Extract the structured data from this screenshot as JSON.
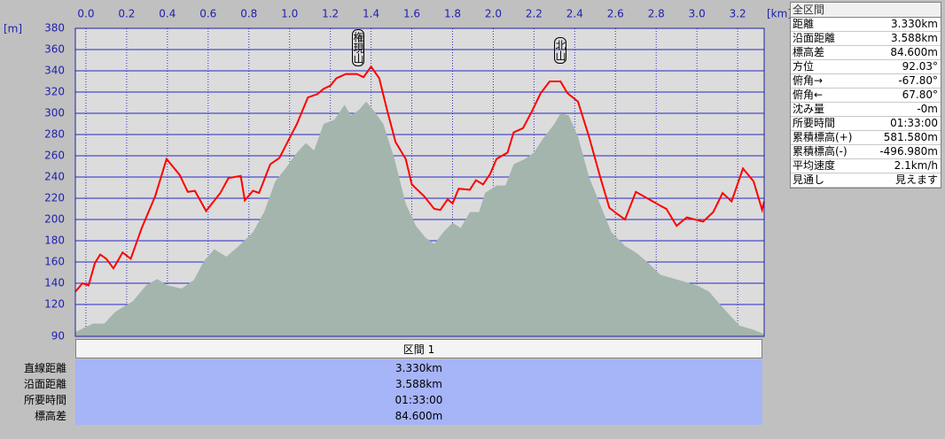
{
  "chart_data": {
    "type": "line",
    "xlabel": "[km]",
    "ylabel": "[m]",
    "xlim": [
      -0.052,
      3.33
    ],
    "ylim": [
      90,
      380
    ],
    "xticks": [
      {
        "value": 0,
        "label": "0.0"
      },
      0.2,
      0.4,
      0.6,
      0.8,
      {
        "value": 1,
        "label": "1.0"
      },
      1.2,
      1.4,
      1.6,
      1.8,
      {
        "value": 2,
        "label": "2.0"
      },
      2.2,
      2.4,
      2.6,
      2.8,
      {
        "value": 3,
        "label": "3.0"
      },
      3.2
    ],
    "yticks": [
      90,
      120,
      140,
      160,
      180,
      200,
      220,
      240,
      260,
      280,
      300,
      320,
      340,
      360,
      380
    ],
    "grid": true,
    "series": [
      {
        "type": "area",
        "color": "#a3b5ad",
        "x": [
          -0.052,
          -0.01,
          0.035,
          0.09,
          0.144,
          0.23,
          0.296,
          0.35,
          0.4,
          0.47,
          0.53,
          0.58,
          0.63,
          0.69,
          0.75,
          0.82,
          0.875,
          0.93,
          0.98,
          1.036,
          1.08,
          1.12,
          1.167,
          1.22,
          1.27,
          1.3,
          1.34,
          1.376,
          1.415,
          1.46,
          1.515,
          1.57,
          1.62,
          1.667,
          1.71,
          1.755,
          1.8,
          1.84,
          1.885,
          1.93,
          1.96,
          2.016,
          2.06,
          2.1,
          2.155,
          2.2,
          2.24,
          2.3,
          2.33,
          2.37,
          2.416,
          2.47,
          2.54,
          2.58,
          2.647,
          2.7,
          2.756,
          2.82,
          2.91,
          3.0,
          3.06,
          3.1,
          3.17,
          3.21,
          3.28,
          3.33
        ],
        "values": [
          94,
          98,
          102,
          102,
          113,
          123,
          138,
          144,
          138,
          135,
          143,
          161,
          172,
          165,
          175,
          188,
          207,
          236,
          248,
          263,
          272,
          265,
          290,
          294,
          308,
          298,
          303,
          311,
          302,
          290,
          257,
          215,
          194,
          183,
          177,
          188,
          197,
          192,
          207,
          207,
          225,
          232,
          232,
          252,
          257,
          263,
          275,
          290,
          300,
          298,
          278,
          240,
          207,
          188,
          175,
          169,
          160,
          148,
          143,
          138,
          132,
          123,
          108,
          100,
          96,
          92
        ]
      },
      {
        "type": "line",
        "color": "#ff0000",
        "x": [
          -0.052,
          -0.017,
          0.013,
          0.044,
          0.07,
          0.1,
          0.135,
          0.18,
          0.22,
          0.274,
          0.34,
          0.396,
          0.46,
          0.5,
          0.535,
          0.59,
          0.66,
          0.7,
          0.76,
          0.78,
          0.82,
          0.85,
          0.905,
          0.95,
          0.99,
          1.036,
          1.09,
          1.136,
          1.167,
          1.2,
          1.23,
          1.276,
          1.33,
          1.363,
          1.4,
          1.44,
          1.48,
          1.52,
          1.57,
          1.6,
          1.66,
          1.71,
          1.74,
          1.776,
          1.8,
          1.83,
          1.885,
          1.915,
          1.95,
          1.985,
          2.016,
          2.07,
          2.1,
          2.146,
          2.19,
          2.233,
          2.277,
          2.33,
          2.364,
          2.416,
          2.47,
          2.525,
          2.57,
          2.61,
          2.647,
          2.7,
          2.756,
          2.82,
          2.85,
          2.9,
          2.95,
          3.03,
          3.08,
          3.126,
          3.17,
          3.226,
          3.278,
          3.32,
          3.33
        ],
        "values": [
          132,
          140,
          138,
          159,
          167,
          163,
          154,
          169,
          163,
          192,
          222,
          257,
          242,
          226,
          227,
          208,
          225,
          239,
          241,
          218,
          227,
          225,
          252,
          258,
          273,
          290,
          315,
          318,
          323,
          326,
          333,
          337,
          337,
          334,
          344,
          333,
          302,
          273,
          257,
          233,
          222,
          210,
          209,
          219,
          215,
          229,
          228,
          237,
          233,
          243,
          257,
          263,
          282,
          286,
          302,
          319,
          330,
          330,
          319,
          311,
          278,
          240,
          211,
          205,
          200,
          226,
          220,
          213,
          210,
          194,
          202,
          198,
          207,
          225,
          217,
          248,
          236,
          209,
          217
        ]
      }
    ],
    "annotations": [
      "権現山",
      "北山"
    ]
  },
  "side_panel": {
    "title": "全区間",
    "rows": [
      [
        "距離",
        "3.330km"
      ],
      [
        "沿面距離",
        "3.588km"
      ],
      [
        "標高差",
        "84.600m"
      ],
      [
        "方位",
        "92.03°"
      ],
      [
        "俯角→",
        "-67.80°"
      ],
      [
        "俯角←",
        "67.80°"
      ],
      [
        "沈み量",
        "-0m"
      ],
      [
        "所要時間",
        "01:33:00"
      ],
      [
        "累積標高(+)",
        "581.580m"
      ],
      [
        "累積標高(-)",
        "-496.980m"
      ],
      [
        "平均速度",
        "2.1km/h"
      ],
      [
        "見通し",
        "見えます"
      ]
    ]
  },
  "segment_table": {
    "header": "区間 1",
    "rows": [
      [
        "直線距離",
        "3.330km"
      ],
      [
        "沿面距離",
        "3.588km"
      ],
      [
        "所要時間",
        "01:33:00"
      ],
      [
        "標高差",
        "84.600m"
      ]
    ]
  }
}
